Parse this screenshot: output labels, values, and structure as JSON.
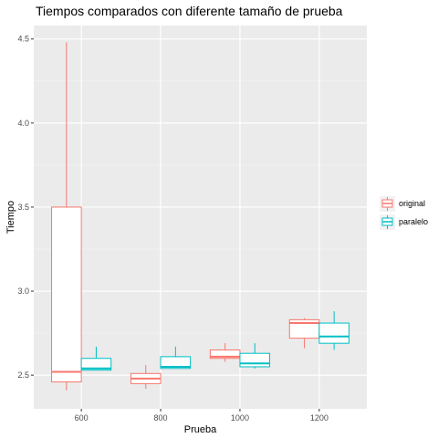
{
  "chart_data": {
    "type": "boxplot",
    "title": "Tiempos comparados con diferente tamaño de prueba",
    "xlabel": "Prueba",
    "ylabel": "Tiempo",
    "categories": [
      "600",
      "800",
      "1000",
      "1200"
    ],
    "yticks": [
      "2.5",
      "3.0",
      "3.5",
      "4.0",
      "4.5"
    ],
    "ylim": [
      2.3,
      4.58
    ],
    "grid": true,
    "legend_position": "right",
    "series": [
      {
        "name": "original",
        "color": "#f8766d",
        "boxes": [
          {
            "category": "600",
            "min": 2.41,
            "q1": 2.46,
            "median": 2.52,
            "q3": 3.5,
            "max": 4.48
          },
          {
            "category": "800",
            "min": 2.42,
            "q1": 2.45,
            "median": 2.48,
            "q3": 2.51,
            "max": 2.56
          },
          {
            "category": "1000",
            "min": 2.58,
            "q1": 2.6,
            "median": 2.61,
            "q3": 2.65,
            "max": 2.69
          },
          {
            "category": "1200",
            "min": 2.66,
            "q1": 2.72,
            "median": 2.81,
            "q3": 2.83,
            "max": 2.84
          }
        ]
      },
      {
        "name": "paralelo",
        "color": "#00bfc4",
        "boxes": [
          {
            "category": "600",
            "min": 2.53,
            "q1": 2.53,
            "median": 2.54,
            "q3": 2.6,
            "max": 2.67
          },
          {
            "category": "800",
            "min": 2.54,
            "q1": 2.54,
            "median": 2.55,
            "q3": 2.61,
            "max": 2.67
          },
          {
            "category": "1000",
            "min": 2.54,
            "q1": 2.55,
            "median": 2.57,
            "q3": 2.63,
            "max": 2.69
          },
          {
            "category": "1200",
            "min": 2.65,
            "q1": 2.69,
            "median": 2.73,
            "q3": 2.81,
            "max": 2.88
          }
        ]
      }
    ]
  }
}
